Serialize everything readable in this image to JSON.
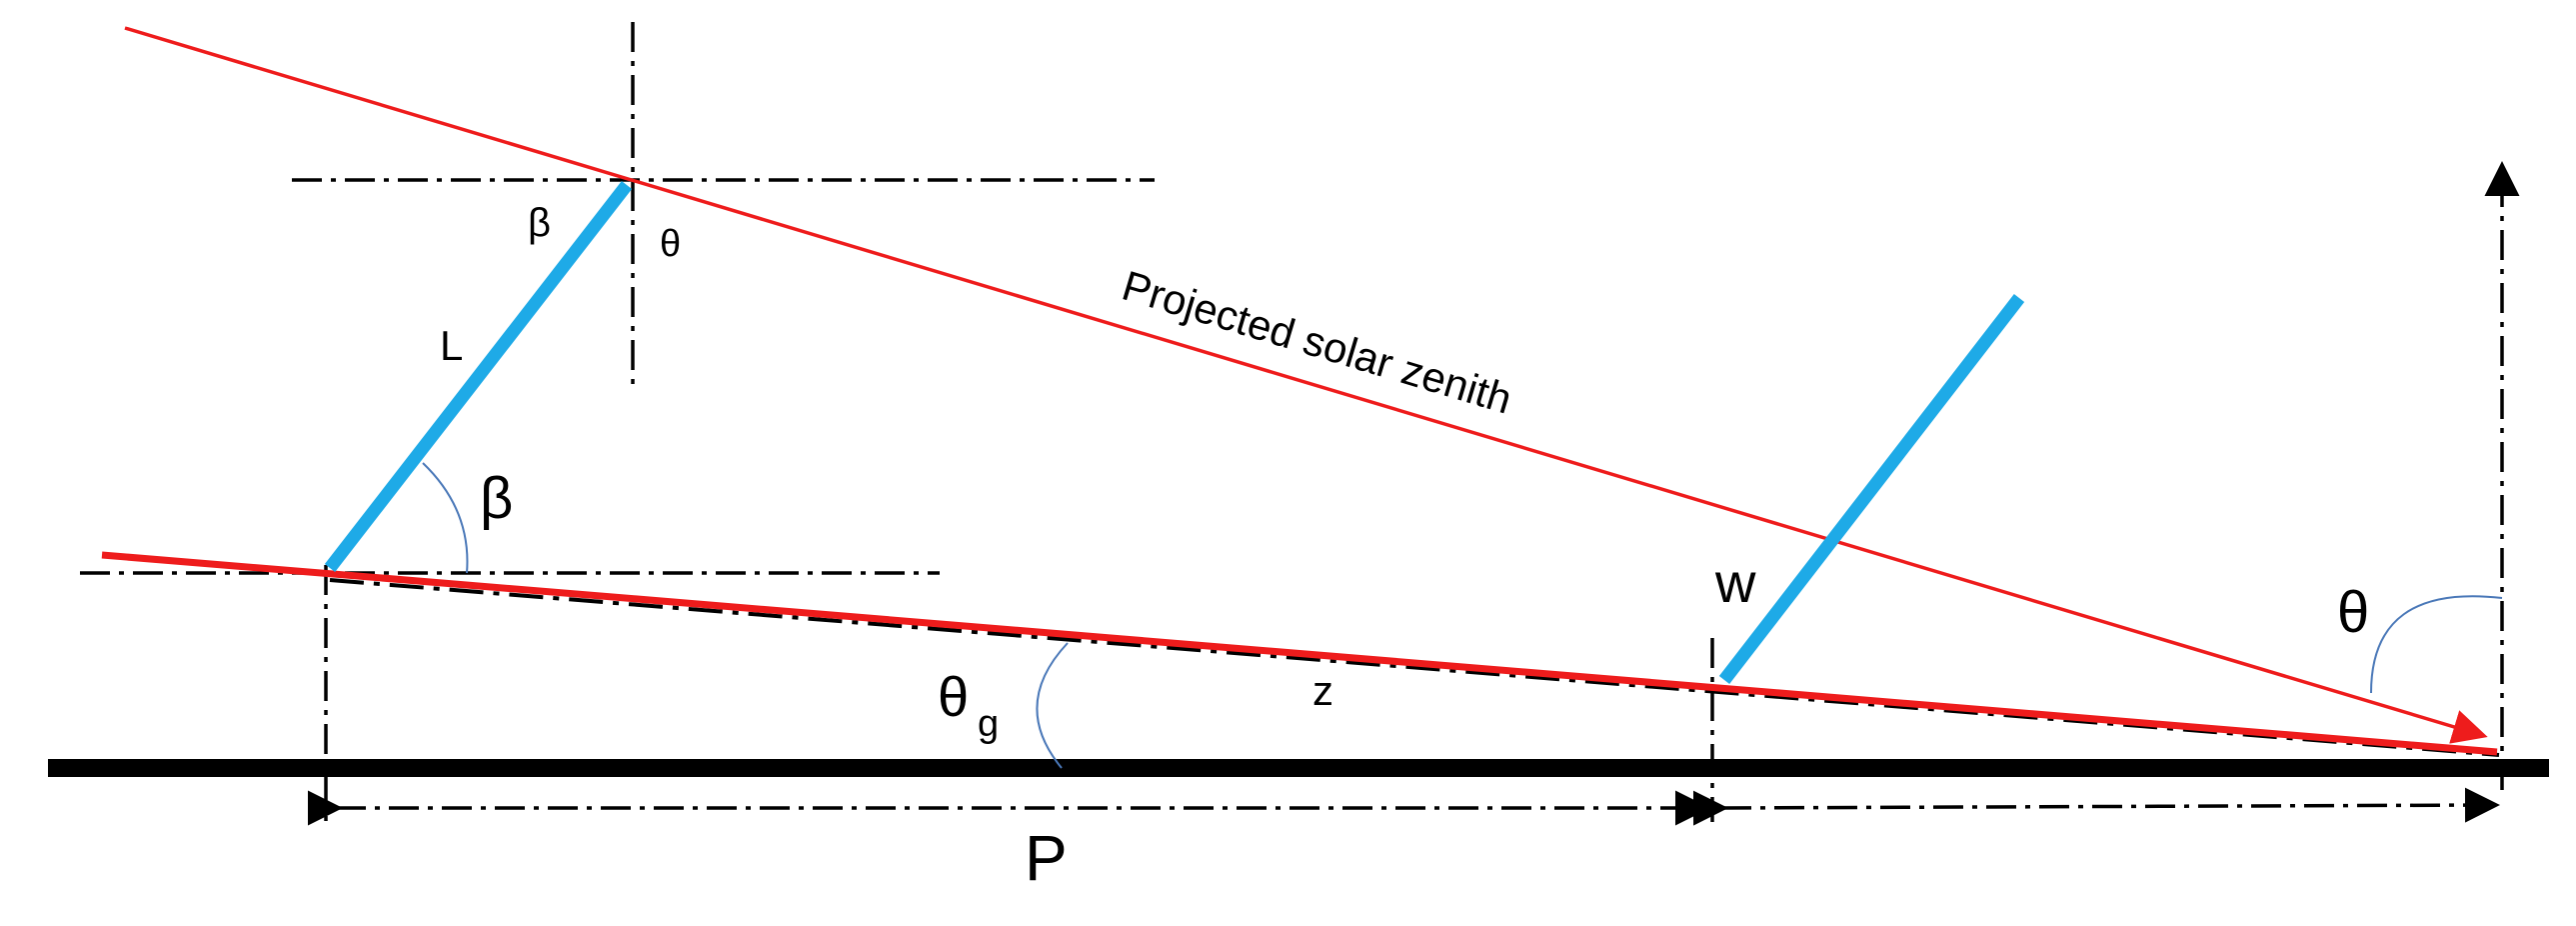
{
  "labels": {
    "projected_solar_zenith": "Projected solar zenith",
    "beta_small": "β",
    "theta_small": "θ",
    "L": "L",
    "beta_large": "β",
    "w": "w",
    "theta_g_main": "θ",
    "theta_g_sub": "g",
    "z": "z",
    "theta_large": "θ",
    "P": "P"
  },
  "colors": {
    "panel": "#1EAAE7",
    "ray": "#EE1C1C",
    "ground": "#000000",
    "arc": "#4A78B8",
    "construction": "#000000"
  }
}
